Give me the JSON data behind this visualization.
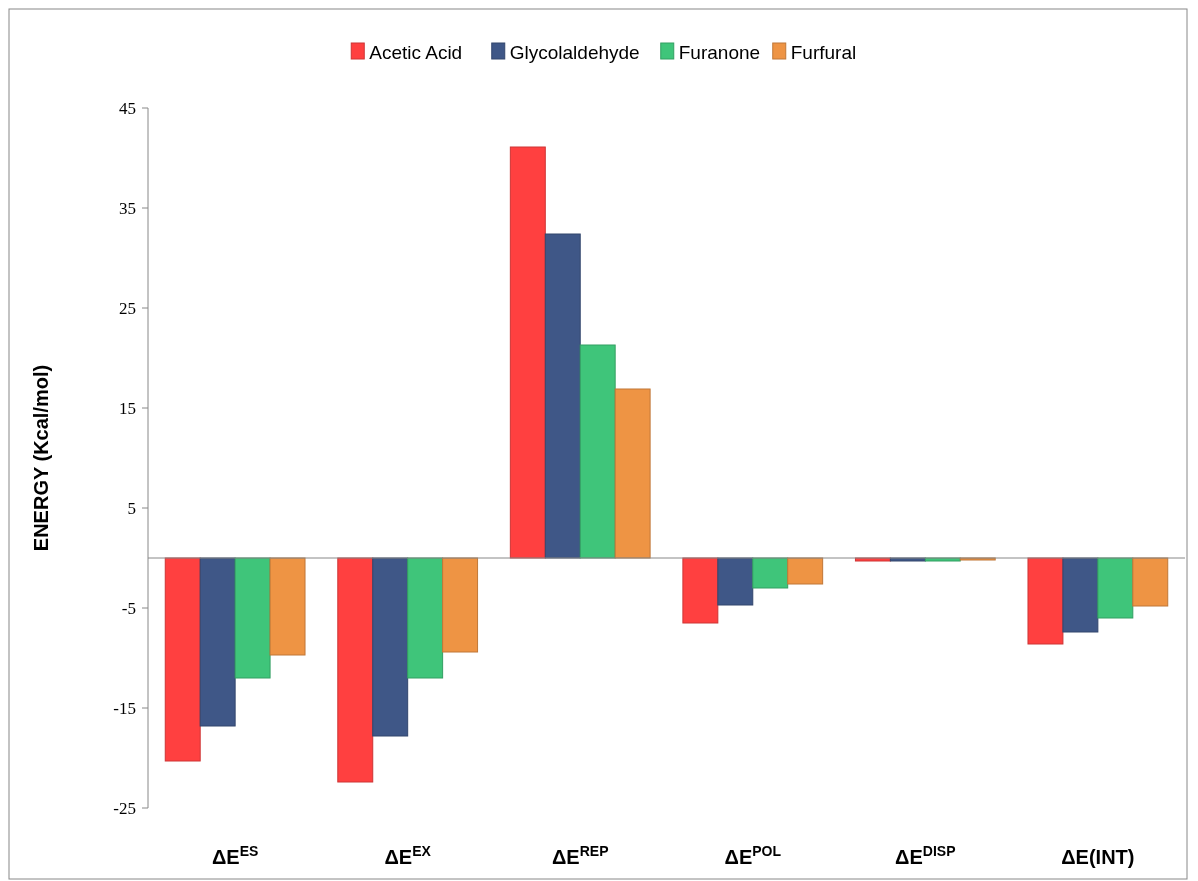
{
  "chart_data": {
    "type": "bar",
    "ylabel": "ENERGY (Kcal/mol)",
    "categories": [
      "ΔE$^{ES}$",
      "ΔE$^{EX}$",
      "ΔE$^{REP}$",
      "ΔE$^{POL}$",
      "ΔE$^{DISP}$",
      "ΔE(INT)"
    ],
    "series": [
      {
        "name": "Acetic Acid",
        "color": "#ff4040",
        "values": [
          -20.3,
          -22.4,
          41.1,
          -6.5,
          -0.3,
          -8.6
        ]
      },
      {
        "name": "Glycolaldehyde",
        "color": "#3f5787",
        "values": [
          -16.8,
          -17.8,
          32.4,
          -4.7,
          -0.3,
          -7.4
        ]
      },
      {
        "name": "Furanone",
        "color": "#3fc57a",
        "values": [
          -12.0,
          -12.0,
          21.3,
          -3.0,
          -0.3,
          -6.0
        ]
      },
      {
        "name": "Furfural",
        "color": "#ee9444",
        "values": [
          -9.7,
          -9.4,
          16.9,
          -2.6,
          -0.2,
          -4.8
        ]
      }
    ],
    "ylim": [
      -25,
      45
    ],
    "yticks": [
      -25,
      -15,
      -5,
      5,
      15,
      25,
      35,
      45
    ],
    "grid": false,
    "legend": "top"
  }
}
